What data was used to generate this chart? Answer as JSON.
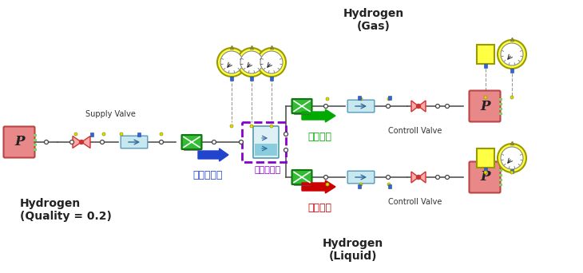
{
  "bg_color": "#ffffff",
  "pink_box_color": "#e88888",
  "green_box_color": "#44bb44",
  "yellow_color": "#ffff44",
  "light_blue_color": "#c8e8f0",
  "purple_dash_color": "#8800cc",
  "line_color": "#555555",
  "blue_arrow_color": "#2244cc",
  "green_arrow_color": "#00aa00",
  "red_arrow_color": "#cc0000",
  "text_supply_valve": "Supply Valve",
  "text_hydrogen_q": "Hydrogen\n(Quality = 0.2)",
  "text_tank_flow": "タンク流入",
  "text_tank": "気液タンク",
  "text_gas_flow": "気体流出",
  "text_liquid_flow": "液体流出",
  "text_hydrogen_gas": "Hydrogen\n(Gas)",
  "text_hydrogen_liquid": "Hydrogen\n(Liquid)",
  "text_controll_valve_top": "Controll Valve",
  "text_controll_valve_bottom": "Controll Valve"
}
